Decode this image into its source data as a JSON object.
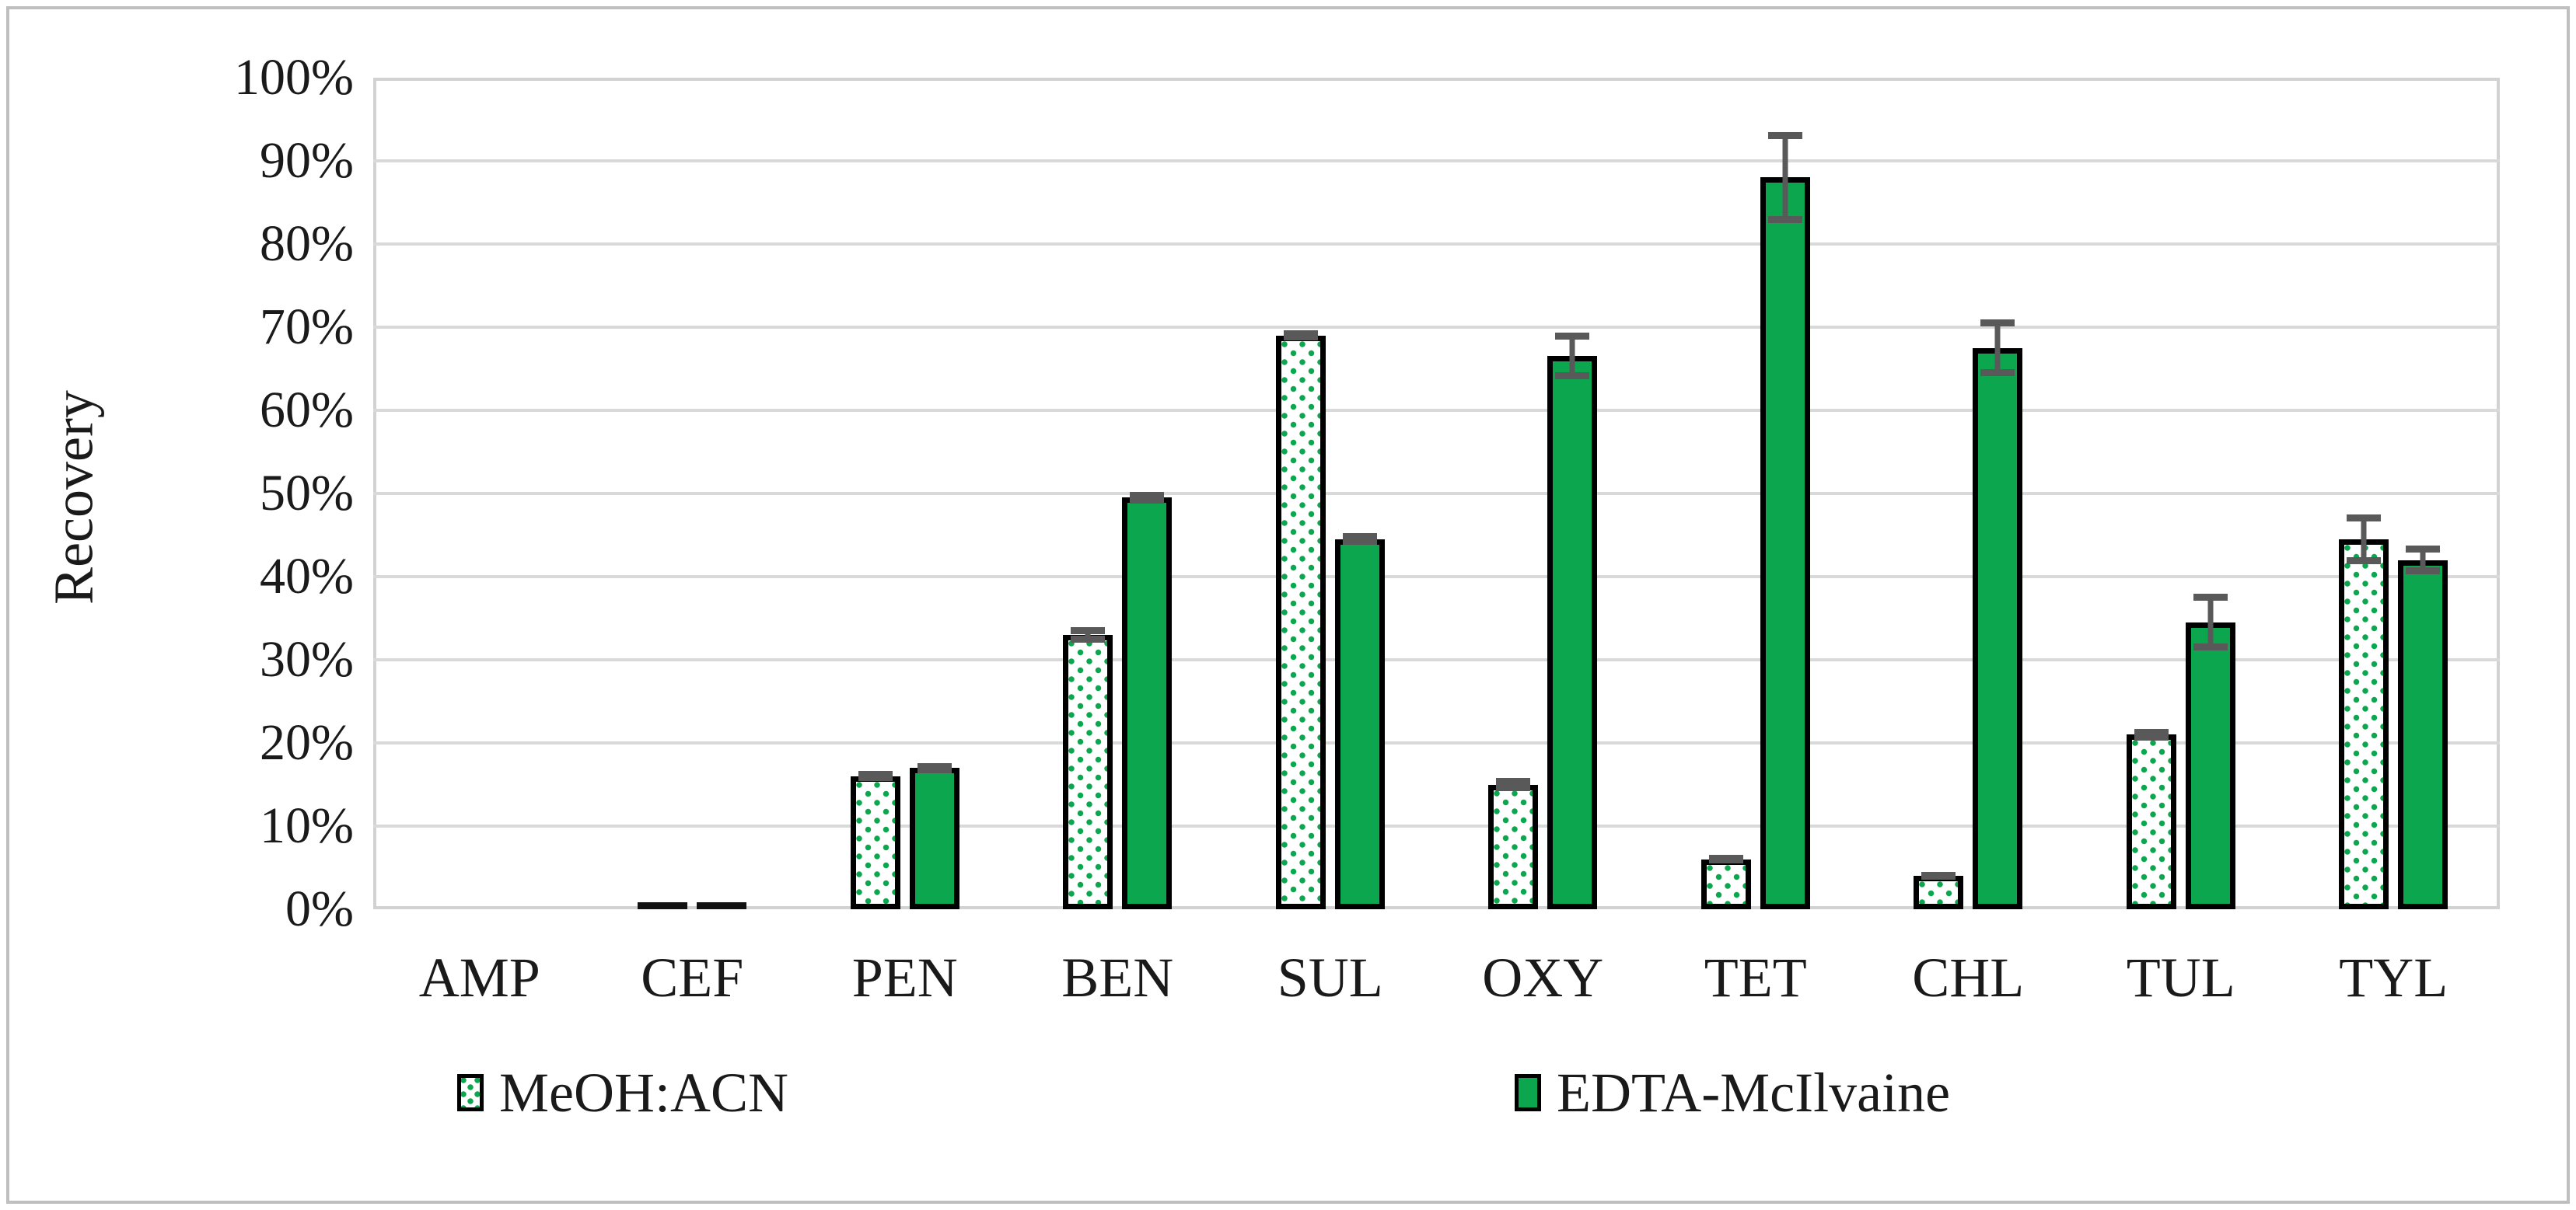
{
  "chart_data": {
    "type": "bar",
    "ylabel": "Recovery",
    "xlabel": "",
    "categories": [
      "AMP",
      "CEF",
      "PEN",
      "BEN",
      "SUL",
      "OXY",
      "TET",
      "CHL",
      "TUL",
      "TYL"
    ],
    "series": [
      {
        "name": "MeOH:ACN",
        "style": "dotted-pattern",
        "values": [
          0,
          0.5,
          16,
          33,
          69,
          15,
          6,
          4,
          21,
          44.5
        ],
        "errors": [
          0,
          0,
          0.6,
          0.9,
          0.6,
          0.8,
          0.5,
          0.4,
          0.7,
          3.0
        ]
      },
      {
        "name": "EDTA-McIlvaine",
        "style": "solid-green",
        "values": [
          0,
          0.5,
          17,
          49.5,
          44.5,
          66.5,
          88,
          67.5,
          34.5,
          42
        ],
        "errors": [
          0,
          0,
          0.6,
          0.7,
          0.7,
          2.8,
          5.5,
          3.4,
          3.4,
          1.7
        ]
      }
    ],
    "ylim": [
      0,
      100
    ],
    "yticks": [
      "0%",
      "10%",
      "20%",
      "30%",
      "40%",
      "50%",
      "60%",
      "70%",
      "80%",
      "90%",
      "100%"
    ],
    "grid": true,
    "legend_position": "bottom",
    "colors": {
      "bar_green": "#0ca64e",
      "bar_border": "#000000",
      "error_bar": "#595959",
      "gridline": "#d9d9d9",
      "plot_border": "#d2d2d2",
      "figure_border": "#bfbfbf",
      "text": "#1a1a1a",
      "dot_pattern": "#0ca64e"
    }
  }
}
